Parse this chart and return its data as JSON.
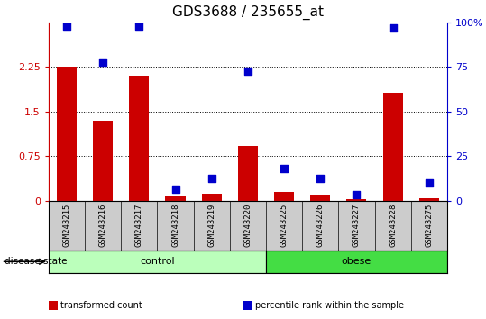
{
  "title": "GDS3688 / 235655_at",
  "samples": [
    "GSM243215",
    "GSM243216",
    "GSM243217",
    "GSM243218",
    "GSM243219",
    "GSM243220",
    "GSM243225",
    "GSM243226",
    "GSM243227",
    "GSM243228",
    "GSM243275"
  ],
  "transformed_count": [
    2.25,
    1.35,
    2.1,
    0.07,
    0.12,
    0.92,
    0.15,
    0.1,
    0.03,
    1.82,
    0.04
  ],
  "percentile_rank_left_scale": [
    2.93,
    2.33,
    2.94,
    0.2,
    0.38,
    2.18,
    0.55,
    0.38,
    0.1,
    2.91,
    0.3
  ],
  "bar_color": "#cc0000",
  "dot_color": "#0000cc",
  "ylim_left": [
    0,
    3
  ],
  "ylim_right": [
    0,
    100
  ],
  "yticks_left": [
    0,
    0.75,
    1.5,
    2.25
  ],
  "yticks_right": [
    0,
    25,
    50,
    75,
    100
  ],
  "ytick_labels_left": [
    "0",
    "0.75",
    "1.5",
    "2.25"
  ],
  "ytick_labels_right": [
    "0",
    "25",
    "50",
    "75",
    "100%"
  ],
  "grid_lines": [
    0.75,
    1.5,
    2.25
  ],
  "groups": [
    {
      "label": "control",
      "indices": [
        0,
        1,
        2,
        3,
        4,
        5
      ],
      "color": "#bbffbb"
    },
    {
      "label": "obese",
      "indices": [
        6,
        7,
        8,
        9,
        10
      ],
      "color": "#44dd44"
    }
  ],
  "disease_state_label": "disease state",
  "legend": [
    {
      "label": "transformed count",
      "color": "#cc0000"
    },
    {
      "label": "percentile rank within the sample",
      "color": "#0000cc"
    }
  ],
  "background_color": "#ffffff",
  "sample_bg_color": "#cccccc",
  "title_fontsize": 11,
  "tick_fontsize": 8,
  "bar_width": 0.55,
  "dot_size": 28
}
